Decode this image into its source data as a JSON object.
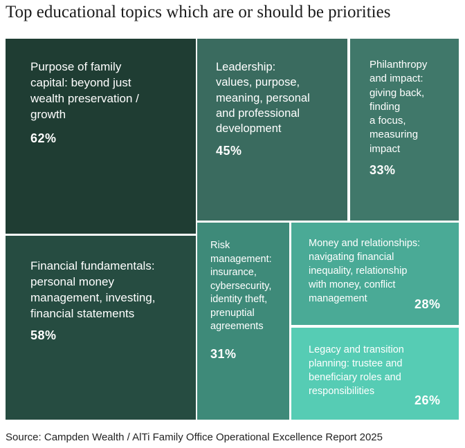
{
  "title": "Top educational topics which are or should be priorities",
  "source": "Source: Campden Wealth / AlTi Family Office Operational Excellence Report 2025",
  "chart_data": {
    "type": "treemap",
    "title": "Top educational topics which are or should be priorities",
    "unit": "%",
    "items": [
      {
        "label": "Purpose of family capital: beyond just wealth preservation / growth",
        "value": 62,
        "value_label": "62%",
        "color": "#1f3d33"
      },
      {
        "label": "Financial fundamentals: personal money management, investing, financial statements",
        "value": 58,
        "value_label": "58%",
        "color": "#264c41"
      },
      {
        "label": "Leadership: values, purpose, meaning, personal and professional development",
        "value": 45,
        "value_label": "45%",
        "color": "#3a6b5f"
      },
      {
        "label": "Philanthropy and impact: giving back, finding a focus, measuring impact",
        "value": 33,
        "value_label": "33%",
        "color": "#40786a"
      },
      {
        "label": "Risk management: insurance, cybersecurity, identity theft, prenuptial agreements",
        "value": 31,
        "value_label": "31%",
        "color": "#3e8a79"
      },
      {
        "label": "Money and relationships: navigating financial inequality, relationship with money, conflict management",
        "value": 28,
        "value_label": "28%",
        "color": "#4aaa96"
      },
      {
        "label": "Legacy and transition planning: trustee and beneficiary roles and responsibilities",
        "value": 26,
        "value_label": "26%",
        "color": "#56ccb4"
      }
    ]
  }
}
